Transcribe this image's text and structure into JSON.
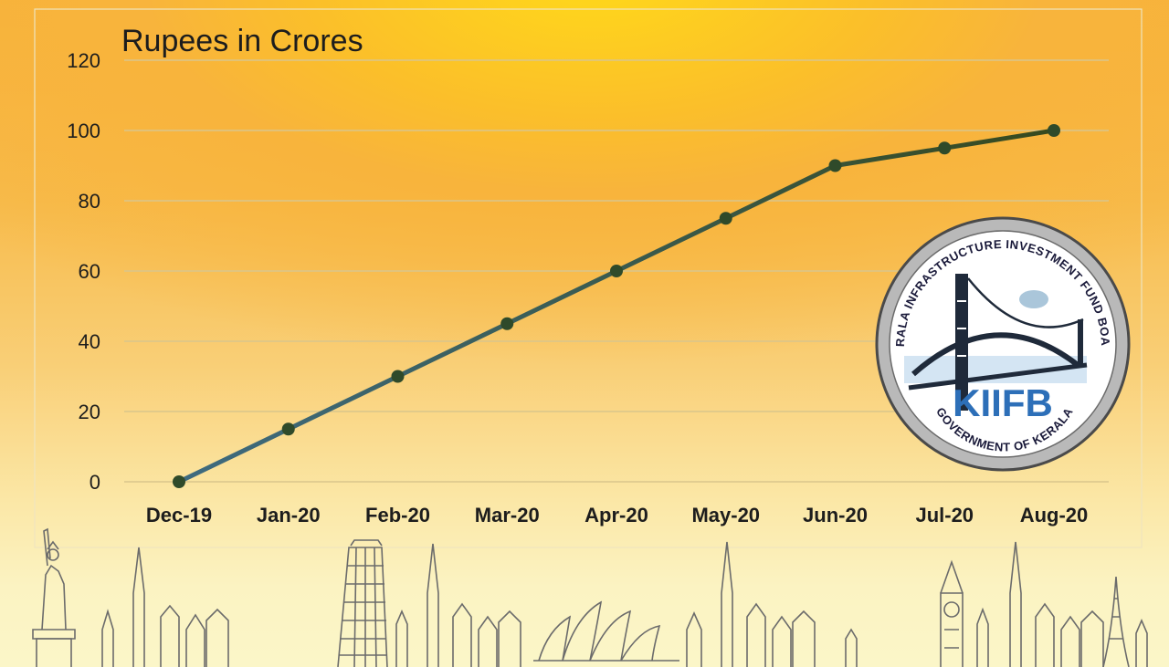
{
  "chart_data": {
    "type": "line",
    "title": "Rupees in Crores",
    "xlabel": "",
    "ylabel": "",
    "categories": [
      "Dec-19",
      "Jan-20",
      "Feb-20",
      "Mar-20",
      "Apr-20",
      "May-20",
      "Jun-20",
      "Jul-20",
      "Aug-20"
    ],
    "series": [
      {
        "values": [
          0,
          15,
          30,
          45,
          60,
          75,
          90,
          95,
          100
        ]
      }
    ],
    "ylim": [
      0,
      120
    ],
    "yticks": [
      "0",
      "20",
      "40",
      "60",
      "80",
      "100",
      "120"
    ],
    "grid": true,
    "line_gradient": [
      "#3e6b80",
      "#374a1e"
    ],
    "marker_color": "#2f4a2a"
  },
  "seal": {
    "top_text": "KERALA INFRASTRUCTURE INVESTMENT FUND BOARD",
    "wordmark": "KIIFB",
    "bottom_text": "GOVERNMENT OF KERALA",
    "ring_color": "#b9b9b9",
    "wordmark_color": "#2d6fb8"
  },
  "decor": {
    "skyline_icon": "landmarks-skyline-icon"
  }
}
